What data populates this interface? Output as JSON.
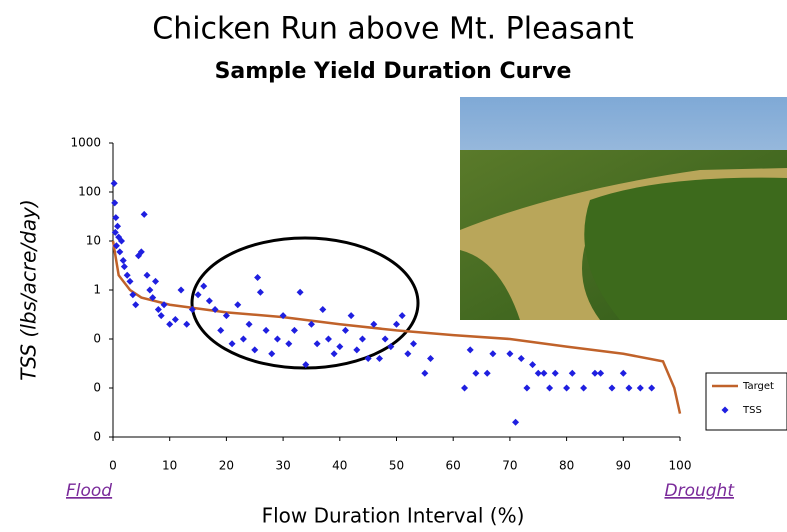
{
  "chart_data": {
    "type": "scatter",
    "title": "Chicken Run above Mt. Pleasant",
    "subtitle": "Sample Yield Duration Curve",
    "x_label": "Flow Duration Interval (%)",
    "y_label": "TSS (lbs/acre/day)",
    "annotations": [
      "Flood",
      "Drought"
    ],
    "xlim": [
      0,
      100
    ],
    "xticks": [
      0,
      10,
      20,
      30,
      40,
      50,
      60,
      70,
      80,
      90,
      100
    ],
    "ylim": [
      0.001,
      1000
    ],
    "yticks": [
      1000,
      100,
      10,
      1,
      {
        "value": 0.1,
        "label": "0"
      },
      {
        "value": 0.01,
        "label": "0"
      },
      {
        "value": 0.001,
        "label": "0"
      }
    ],
    "y_scale": "log",
    "legend": "right",
    "series": [
      {
        "name": "Target",
        "type": "line",
        "color": "#c0622a",
        "x": [
          0,
          1,
          3,
          5,
          10,
          20,
          30,
          40,
          50,
          60,
          70,
          80,
          90,
          97,
          99,
          100
        ],
        "values": [
          10,
          2,
          1,
          0.7,
          0.5,
          0.35,
          0.28,
          0.2,
          0.15,
          0.12,
          0.1,
          0.07,
          0.05,
          0.035,
          0.01,
          0.003
        ]
      },
      {
        "name": "TSS",
        "type": "scatter",
        "color": "#1f1fe0",
        "x": [
          0.2,
          0.3,
          0.5,
          0.4,
          0.6,
          0.8,
          1,
          1.2,
          1.5,
          1.8,
          2,
          2.5,
          3,
          3.5,
          4,
          4.5,
          5,
          5.5,
          6,
          6.5,
          7,
          7.5,
          8,
          8.5,
          9,
          10,
          11,
          12,
          13,
          14,
          15,
          16,
          17,
          18,
          19,
          20,
          21,
          22,
          23,
          24,
          25,
          25.5,
          26,
          27,
          28,
          29,
          30,
          31,
          32,
          33,
          34,
          35,
          36,
          37,
          38,
          39,
          40,
          41,
          42,
          43,
          44,
          45,
          46,
          47,
          48,
          49,
          50,
          51,
          52,
          53,
          55,
          56,
          62,
          63,
          64,
          66,
          67,
          70,
          71,
          72,
          73,
          74,
          75,
          76,
          77,
          78,
          80,
          81,
          83,
          85,
          86,
          88,
          90,
          91,
          93,
          95
        ],
        "values": [
          150,
          60,
          30,
          15,
          8,
          20,
          12,
          6,
          10,
          4,
          3,
          2,
          1.5,
          0.8,
          0.5,
          5,
          6,
          35,
          2,
          1,
          0.7,
          1.5,
          0.4,
          0.3,
          0.5,
          0.2,
          0.25,
          1,
          0.2,
          0.4,
          0.8,
          1.2,
          0.6,
          0.4,
          0.15,
          0.3,
          0.08,
          0.5,
          0.1,
          0.2,
          0.06,
          1.8,
          0.9,
          0.15,
          0.05,
          0.1,
          0.3,
          0.08,
          0.15,
          0.9,
          0.03,
          0.2,
          0.08,
          0.4,
          0.1,
          0.05,
          0.07,
          0.15,
          0.3,
          0.06,
          0.1,
          0.04,
          0.2,
          0.04,
          0.1,
          0.07,
          0.2,
          0.3,
          0.05,
          0.08,
          0.02,
          0.04,
          0.01,
          0.06,
          0.02,
          0.02,
          0.05,
          0.05,
          0.002,
          0.04,
          0.01,
          0.03,
          0.02,
          0.02,
          0.01,
          0.02,
          0.01,
          0.02,
          0.01,
          0.02,
          0.02,
          0.01,
          0.02,
          0.01,
          0.01,
          0.01
        ]
      }
    ]
  }
}
